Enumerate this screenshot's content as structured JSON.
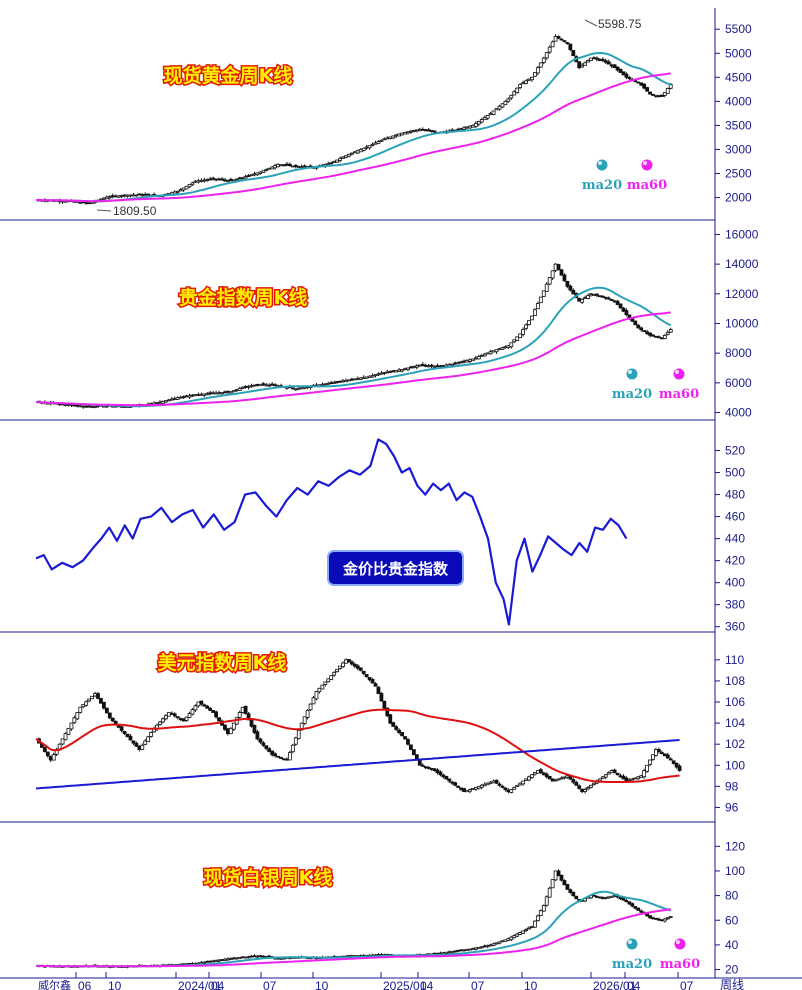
{
  "chart_data": [
    {
      "type": "candlestick",
      "title": "现货黄金周K线",
      "yticks": [
        2000,
        2500,
        3000,
        3500,
        4000,
        4500,
        5000,
        5500
      ],
      "ylim": [
        1700,
        5650
      ],
      "annotations": [
        {
          "text": "5598.75"
        },
        {
          "text": "1809.50"
        }
      ],
      "legend": [
        "ma20",
        "ma60"
      ],
      "series": [
        {
          "name": "ma20",
          "color": "#2aa3b8"
        },
        {
          "name": "ma60",
          "color": "#ee22ee"
        }
      ],
      "points": [
        [
          0,
          1950
        ],
        [
          6,
          1940
        ],
        [
          12,
          1920
        ],
        [
          18,
          1880
        ],
        [
          24,
          2010
        ],
        [
          30,
          2050
        ],
        [
          36,
          2060
        ],
        [
          42,
          2040
        ],
        [
          48,
          2130
        ],
        [
          54,
          2340
        ],
        [
          60,
          2390
        ],
        [
          66,
          2350
        ],
        [
          70,
          2420
        ],
        [
          76,
          2530
        ],
        [
          82,
          2690
        ],
        [
          88,
          2650
        ],
        [
          94,
          2630
        ],
        [
          100,
          2720
        ],
        [
          106,
          2900
        ],
        [
          112,
          3050
        ],
        [
          118,
          3220
        ],
        [
          124,
          3340
        ],
        [
          130,
          3420
        ],
        [
          136,
          3350
        ],
        [
          142,
          3400
        ],
        [
          148,
          3500
        ],
        [
          154,
          3750
        ],
        [
          160,
          4050
        ],
        [
          164,
          4350
        ],
        [
          168,
          4500
        ],
        [
          172,
          4900
        ],
        [
          176,
          5350
        ],
        [
          180,
          5200
        ],
        [
          184,
          4700
        ],
        [
          188,
          4900
        ],
        [
          192,
          4850
        ],
        [
          196,
          4700
        ],
        [
          200,
          4500
        ],
        [
          204,
          4400
        ],
        [
          208,
          4150
        ],
        [
          212,
          4100
        ],
        [
          215,
          4350
        ]
      ]
    },
    {
      "type": "candlestick",
      "title": "贵金指数周K线",
      "yticks": [
        4000,
        6000,
        8000,
        10000,
        12000,
        14000,
        16000
      ],
      "ylim": [
        3900,
        16300
      ],
      "legend": [
        "ma20",
        "ma60"
      ],
      "series": [
        {
          "name": "ma20",
          "color": "#2aa3b8"
        },
        {
          "name": "ma60",
          "color": "#ee22ee"
        }
      ],
      "points": [
        [
          0,
          4700
        ],
        [
          6,
          4600
        ],
        [
          12,
          4500
        ],
        [
          18,
          4400
        ],
        [
          24,
          4450
        ],
        [
          30,
          4400
        ],
        [
          36,
          4500
        ],
        [
          42,
          4700
        ],
        [
          48,
          5000
        ],
        [
          54,
          5200
        ],
        [
          60,
          5300
        ],
        [
          66,
          5400
        ],
        [
          70,
          5700
        ],
        [
          76,
          5900
        ],
        [
          82,
          5800
        ],
        [
          88,
          5600
        ],
        [
          94,
          5800
        ],
        [
          100,
          6000
        ],
        [
          106,
          6200
        ],
        [
          112,
          6400
        ],
        [
          118,
          6700
        ],
        [
          124,
          6900
        ],
        [
          130,
          7200
        ],
        [
          136,
          7100
        ],
        [
          142,
          7300
        ],
        [
          148,
          7600
        ],
        [
          154,
          8100
        ],
        [
          160,
          8500
        ],
        [
          164,
          9300
        ],
        [
          168,
          10500
        ],
        [
          172,
          12200
        ],
        [
          176,
          14000
        ],
        [
          180,
          12500
        ],
        [
          184,
          11500
        ],
        [
          188,
          12000
        ],
        [
          192,
          11800
        ],
        [
          196,
          11500
        ],
        [
          200,
          10600
        ],
        [
          204,
          9700
        ],
        [
          208,
          9200
        ],
        [
          212,
          9000
        ],
        [
          215,
          9600
        ]
      ]
    },
    {
      "type": "line",
      "title": "金价比贵金指数",
      "yticks": [
        360,
        380,
        400,
        420,
        440,
        460,
        480,
        500,
        520
      ],
      "ylim": [
        357,
        535
      ],
      "series": [
        {
          "color": "#1a1ad4"
        }
      ],
      "points": [
        [
          0,
          422
        ],
        [
          3,
          425
        ],
        [
          6,
          412
        ],
        [
          10,
          418
        ],
        [
          14,
          414
        ],
        [
          18,
          420
        ],
        [
          22,
          432
        ],
        [
          25,
          440
        ],
        [
          28,
          450
        ],
        [
          31,
          438
        ],
        [
          34,
          452
        ],
        [
          37,
          440
        ],
        [
          40,
          458
        ],
        [
          44,
          460
        ],
        [
          48,
          468
        ],
        [
          52,
          455
        ],
        [
          56,
          462
        ],
        [
          60,
          466
        ],
        [
          64,
          450
        ],
        [
          68,
          462
        ],
        [
          72,
          448
        ],
        [
          76,
          455
        ],
        [
          80,
          480
        ],
        [
          84,
          482
        ],
        [
          88,
          470
        ],
        [
          92,
          460
        ],
        [
          96,
          475
        ],
        [
          100,
          486
        ],
        [
          104,
          480
        ],
        [
          108,
          492
        ],
        [
          112,
          488
        ],
        [
          116,
          496
        ],
        [
          120,
          502
        ],
        [
          124,
          498
        ],
        [
          128,
          506
        ],
        [
          131,
          530
        ],
        [
          134,
          526
        ],
        [
          137,
          515
        ],
        [
          140,
          500
        ],
        [
          143,
          504
        ],
        [
          146,
          488
        ],
        [
          149,
          480
        ],
        [
          152,
          490
        ],
        [
          155,
          484
        ],
        [
          158,
          490
        ],
        [
          161,
          475
        ],
        [
          164,
          482
        ],
        [
          167,
          478
        ],
        [
          170,
          460
        ],
        [
          173,
          440
        ],
        [
          176,
          400
        ],
        [
          179,
          385
        ],
        [
          181,
          362
        ],
        [
          184,
          420
        ],
        [
          187,
          440
        ],
        [
          190,
          410
        ],
        [
          193,
          425
        ],
        [
          196,
          442
        ],
        [
          199,
          436
        ],
        [
          202,
          430
        ],
        [
          205,
          425
        ],
        [
          208,
          436
        ],
        [
          211,
          428
        ],
        [
          214,
          450
        ],
        [
          217,
          448
        ],
        [
          220,
          458
        ],
        [
          223,
          452
        ],
        [
          226,
          440
        ]
      ]
    },
    {
      "type": "candlestick",
      "title": "美元指数周K线",
      "yticks": [
        96,
        98,
        100,
        102,
        104,
        106,
        108,
        110
      ],
      "ylim": [
        95,
        111.5
      ],
      "series": [
        {
          "color": "#dd1111"
        },
        {
          "color": "#1a1ad4"
        }
      ],
      "points": [
        [
          0,
          102.5
        ],
        [
          5,
          100.5
        ],
        [
          10,
          103
        ],
        [
          15,
          105.5
        ],
        [
          20,
          106.8
        ],
        [
          25,
          104.5
        ],
        [
          30,
          103
        ],
        [
          35,
          101.5
        ],
        [
          40,
          103.5
        ],
        [
          45,
          105
        ],
        [
          50,
          104.2
        ],
        [
          55,
          106
        ],
        [
          60,
          105
        ],
        [
          65,
          103
        ],
        [
          70,
          105.5
        ],
        [
          75,
          102.5
        ],
        [
          80,
          101
        ],
        [
          85,
          100.5
        ],
        [
          90,
          104
        ],
        [
          95,
          107
        ],
        [
          100,
          108.5
        ],
        [
          105,
          110
        ],
        [
          110,
          109
        ],
        [
          115,
          107.5
        ],
        [
          120,
          104
        ],
        [
          125,
          102.5
        ],
        [
          130,
          100
        ],
        [
          135,
          99.5
        ],
        [
          140,
          98.5
        ],
        [
          145,
          97.5
        ],
        [
          150,
          98
        ],
        [
          155,
          98.5
        ],
        [
          160,
          97.5
        ],
        [
          165,
          98.5
        ],
        [
          170,
          99.5
        ],
        [
          175,
          98.5
        ],
        [
          180,
          99
        ],
        [
          185,
          97.5
        ],
        [
          190,
          98.5
        ],
        [
          195,
          99.5
        ],
        [
          200,
          98.5
        ],
        [
          205,
          99
        ],
        [
          210,
          101.5
        ],
        [
          215,
          100.5
        ],
        [
          218,
          99.5
        ]
      ]
    },
    {
      "type": "candlestick",
      "title": "现货白银周K线",
      "yticks": [
        20,
        40,
        60,
        80,
        100,
        120
      ],
      "ylim": [
        18,
        130
      ],
      "legend": [
        "ma20",
        "ma60"
      ],
      "series": [
        {
          "name": "ma20",
          "color": "#2aa3b8"
        },
        {
          "name": "ma60",
          "color": "#ee22ee"
        }
      ],
      "points": [
        [
          0,
          23
        ],
        [
          6,
          22.5
        ],
        [
          12,
          22.5
        ],
        [
          18,
          23
        ],
        [
          24,
          22.5
        ],
        [
          30,
          22.5
        ],
        [
          36,
          23
        ],
        [
          42,
          23.5
        ],
        [
          48,
          24
        ],
        [
          54,
          25
        ],
        [
          60,
          27
        ],
        [
          66,
          29
        ],
        [
          70,
          30
        ],
        [
          76,
          31
        ],
        [
          82,
          29
        ],
        [
          88,
          30
        ],
        [
          94,
          29.5
        ],
        [
          100,
          30
        ],
        [
          106,
          31
        ],
        [
          112,
          31.5
        ],
        [
          118,
          32
        ],
        [
          124,
          31
        ],
        [
          130,
          32
        ],
        [
          136,
          33
        ],
        [
          142,
          35
        ],
        [
          148,
          37
        ],
        [
          154,
          40
        ],
        [
          160,
          45
        ],
        [
          164,
          50
        ],
        [
          168,
          55
        ],
        [
          172,
          72
        ],
        [
          176,
          100
        ],
        [
          180,
          85
        ],
        [
          184,
          75
        ],
        [
          188,
          80
        ],
        [
          192,
          78
        ],
        [
          196,
          80
        ],
        [
          200,
          75
        ],
        [
          204,
          68
        ],
        [
          208,
          62
        ],
        [
          212,
          60
        ],
        [
          215,
          63
        ]
      ]
    }
  ],
  "x_axis": {
    "ticks": [
      "06",
      "10",
      "2024/01",
      "04",
      "07",
      "10",
      "2025/01",
      "04",
      "07",
      "10",
      "2026/01",
      "04",
      "07"
    ],
    "period_label": "周线",
    "brand": "威尔鑫"
  }
}
